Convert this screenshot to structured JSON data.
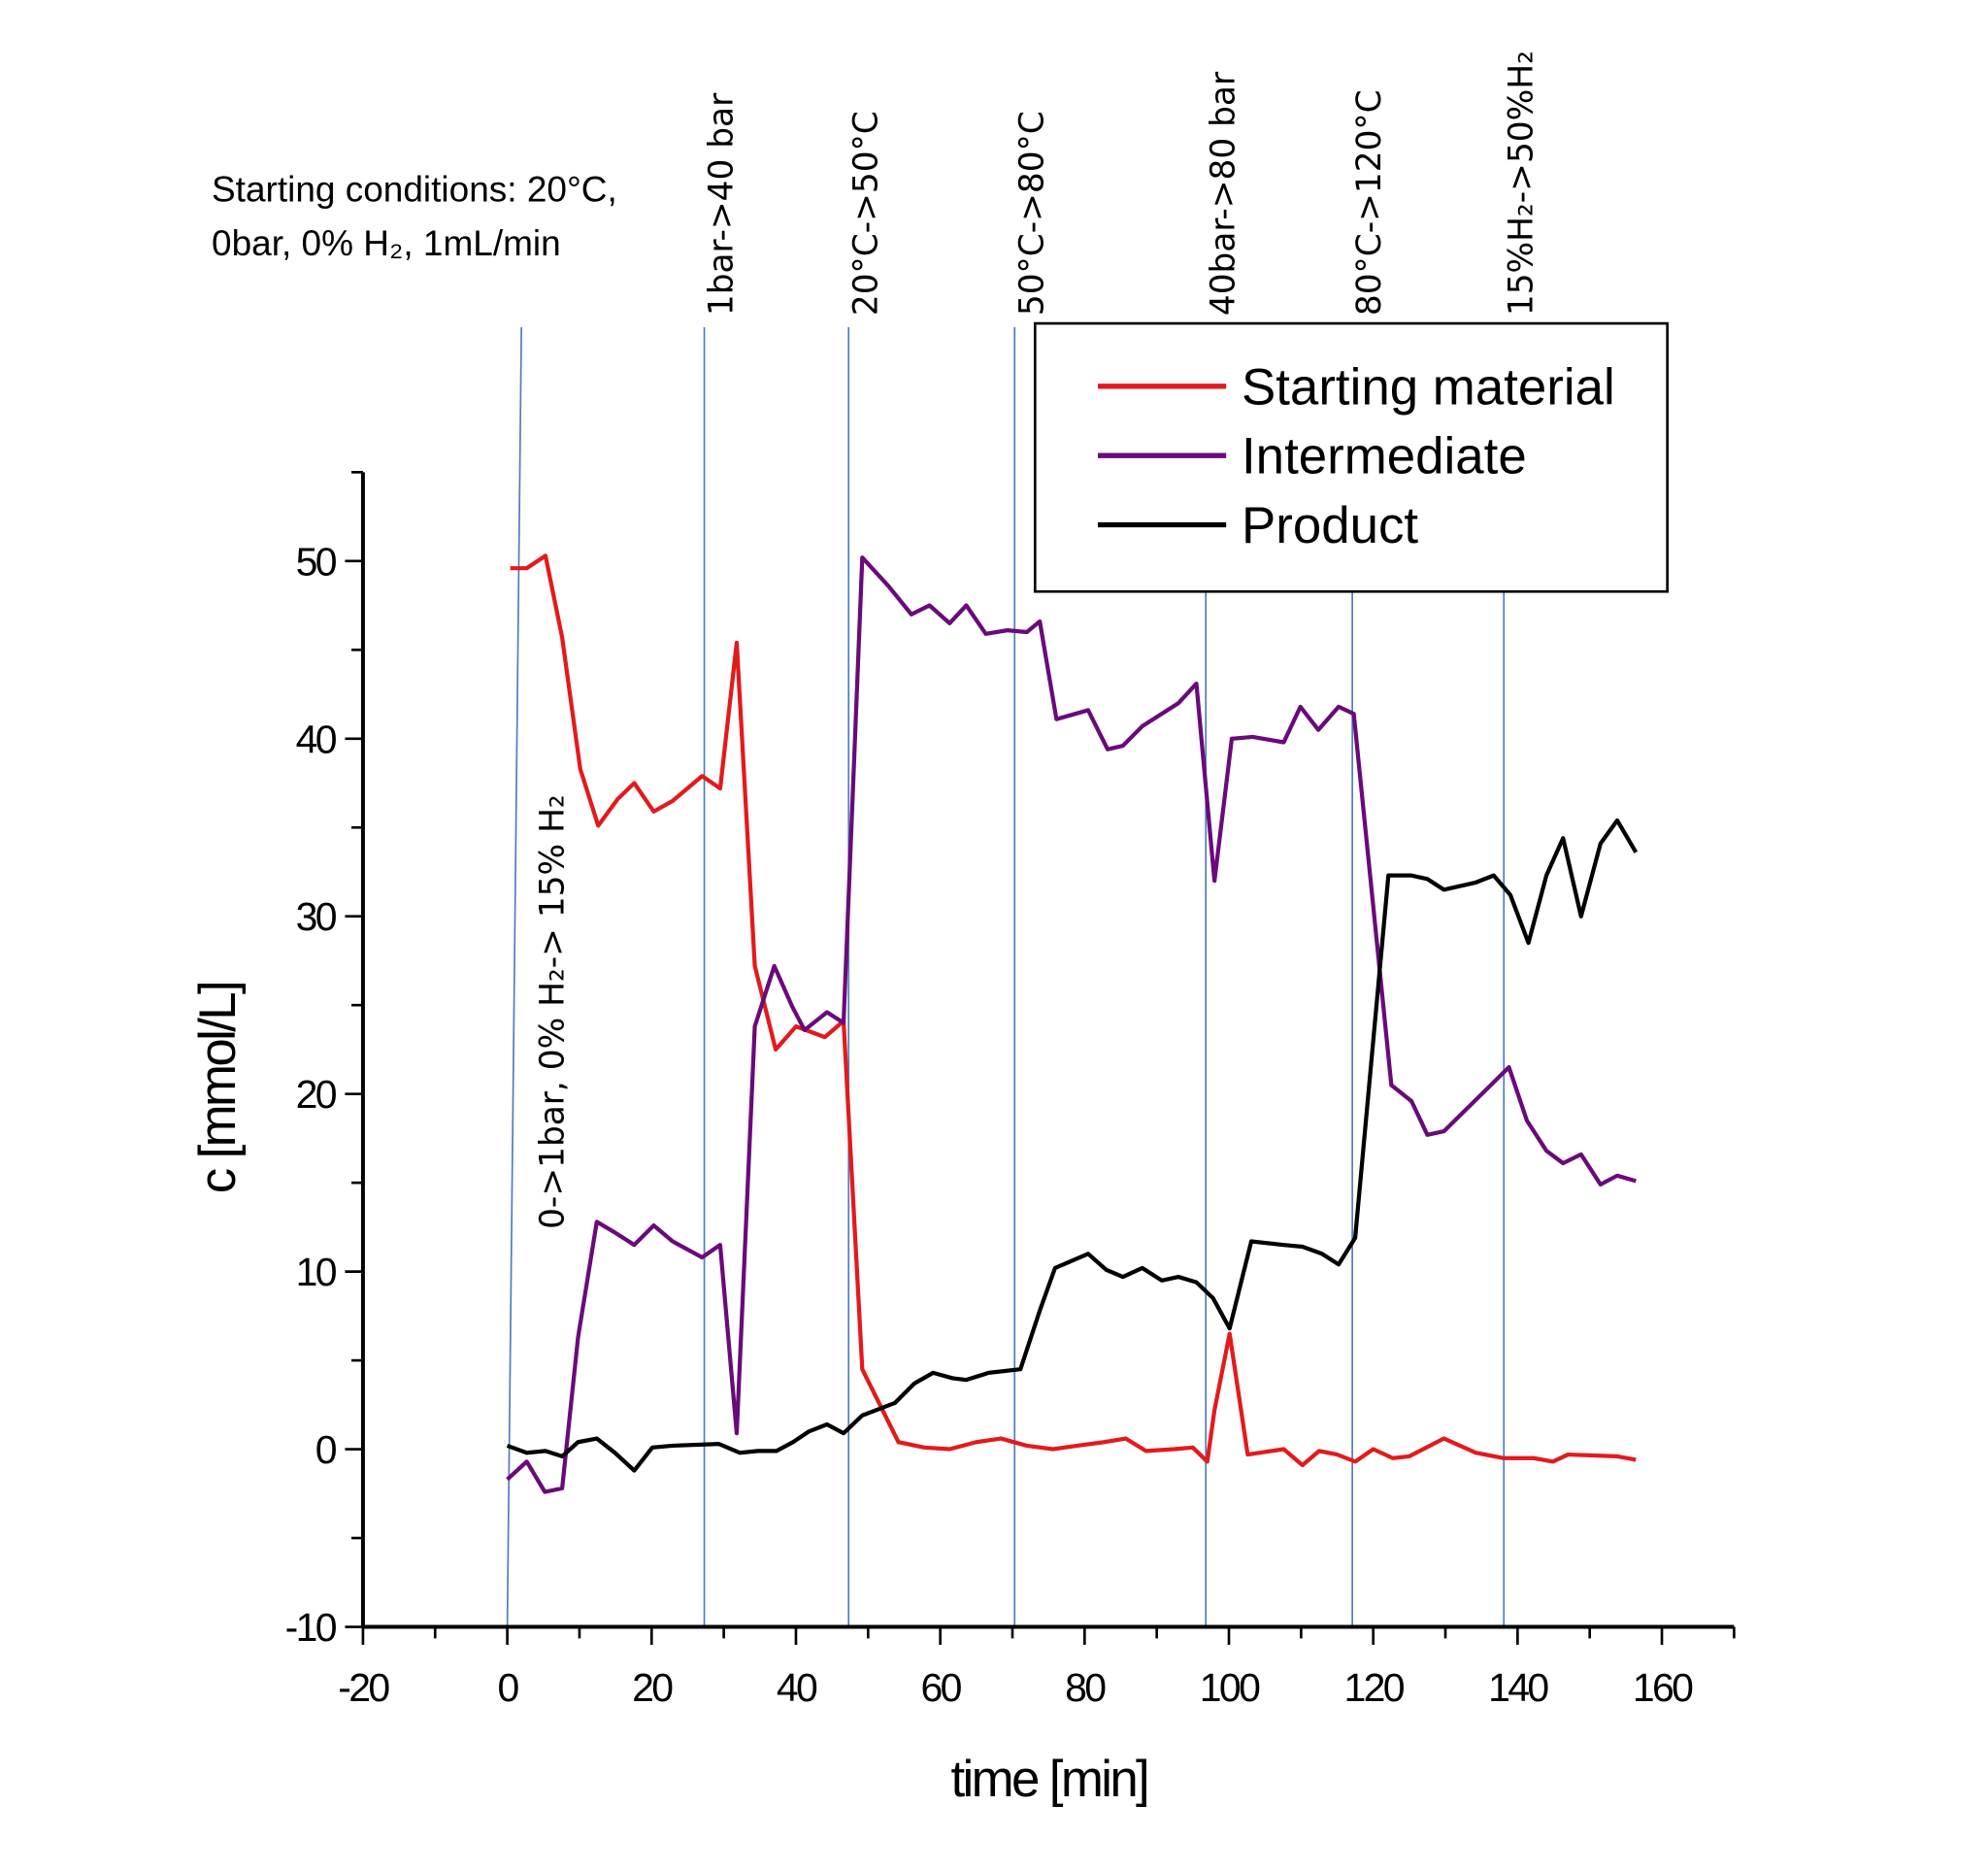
{
  "chart_data": {
    "type": "line",
    "title": "",
    "xlabel": "time [min]",
    "ylabel": "c [mmol/L]",
    "xlim": [
      -20,
      170
    ],
    "ylim": [
      -10,
      55
    ],
    "xticks": [
      -20,
      0,
      20,
      40,
      60,
      80,
      100,
      120,
      140,
      160
    ],
    "yticks": [
      -10,
      0,
      10,
      20,
      30,
      40,
      50
    ],
    "grid": false,
    "legend_position": "top-right",
    "series": [
      {
        "name": "Starting material",
        "color": "#e31a1c",
        "x": [
          0.4,
          2.7,
          5.3,
          7.6,
          10.1,
          12.6,
          15.3,
          17.6,
          20.3,
          22.9,
          27,
          29.5,
          31.8,
          34.3,
          37.2,
          40,
          44,
          46.6,
          49.2,
          54.2,
          57.8,
          61.3,
          65,
          68.4,
          72,
          75.6,
          79,
          82.7,
          85.7,
          88.5,
          92.4,
          95,
          97,
          98,
          100.1,
          102.6,
          107.6,
          110.2,
          112.5,
          115,
          117.5,
          120,
          122.7,
          125,
          129.8,
          134.2,
          138.1,
          142.2,
          144.9,
          147,
          153.8,
          156.4
        ],
        "y": [
          49.6,
          49.6,
          50.3,
          45.7,
          38.3,
          35.1,
          36.6,
          37.5,
          35.9,
          36.5,
          37.9,
          37.2,
          45.4,
          27.2,
          22.5,
          23.8,
          23.2,
          24.1,
          4.5,
          0.4,
          0.1,
          0,
          0.4,
          0.6,
          0.2,
          0,
          0.2,
          0.4,
          0.6,
          -0.1,
          0,
          0.1,
          -0.7,
          2.2,
          6.5,
          -0.3,
          0,
          -0.9,
          -0.1,
          -0.3,
          -0.7,
          0,
          -0.5,
          -0.4,
          0.6,
          -0.2,
          -0.5,
          -0.5,
          -0.7,
          -0.3,
          -0.4,
          -0.6
        ]
      },
      {
        "name": "Intermediate",
        "color": "#6a0a7a",
        "x": [
          0,
          2.7,
          5.2,
          7.6,
          9.8,
          12.4,
          14.9,
          17.6,
          20.3,
          22.9,
          27,
          29.5,
          31.8,
          34.3,
          37,
          39.5,
          41.2,
          44.3,
          46.6,
          49.2,
          52.8,
          56,
          58.5,
          61.3,
          63.6,
          66.3,
          69.3,
          72,
          73.8,
          76.1,
          80.5,
          83.2,
          85.3,
          88,
          93,
          95.5,
          98,
          100.4,
          103.3,
          107.6,
          109.9,
          112.4,
          115.2,
          117.3,
          122.5,
          125.3,
          127.5,
          129.8,
          138.8,
          141.3,
          144,
          146.3,
          148.8,
          151.5,
          153.8,
          156.4
        ],
        "y": [
          -1.7,
          -0.7,
          -2.4,
          -2.2,
          6.3,
          12.8,
          12.2,
          11.5,
          12.6,
          11.7,
          10.8,
          11.5,
          0.9,
          23.8,
          27.2,
          24.9,
          23.6,
          24.6,
          24,
          50.2,
          48.6,
          47,
          47.5,
          46.5,
          47.5,
          45.9,
          46.1,
          46,
          46.6,
          41.1,
          41.6,
          39.4,
          39.6,
          40.7,
          42,
          43.1,
          32,
          40,
          40.1,
          39.8,
          41.8,
          40.5,
          41.8,
          41.4,
          20.5,
          19.6,
          17.7,
          17.9,
          21.5,
          18.5,
          16.8,
          16.1,
          16.6,
          14.9,
          15.4,
          15.1
        ]
      },
      {
        "name": "Product",
        "color": "#000000",
        "x": [
          0,
          2.7,
          5.3,
          7.6,
          9.8,
          12.4,
          14.9,
          17.6,
          20.1,
          22.9,
          29.3,
          32.2,
          34.7,
          37.3,
          39.6,
          41.8,
          44.3,
          46.6,
          49.2,
          53.7,
          56.4,
          59,
          61.7,
          63.6,
          66.7,
          71.1,
          73.8,
          75.9,
          80.5,
          83,
          85.3,
          88,
          90.7,
          93,
          95.5,
          97.8,
          100.1,
          103.1,
          107.6,
          110.2,
          112.9,
          115.2,
          117.5,
          122.1,
          125.3,
          127.5,
          129.8,
          134.2,
          136.7,
          139,
          141.5,
          144,
          146.3,
          148.8,
          151.5,
          153.8,
          156.4
        ],
        "y": [
          0.2,
          -0.2,
          -0.1,
          -0.4,
          0.4,
          0.6,
          -0.2,
          -1.2,
          0.1,
          0.2,
          0.3,
          -0.2,
          -0.1,
          -0.1,
          0.4,
          1,
          1.4,
          0.9,
          1.9,
          2.6,
          3.7,
          4.3,
          4,
          3.9,
          4.3,
          4.5,
          7.8,
          10.2,
          11,
          10.1,
          9.7,
          10.2,
          9.5,
          9.7,
          9.4,
          8.5,
          6.8,
          11.7,
          11.5,
          11.4,
          11,
          10.4,
          11.9,
          32.3,
          32.3,
          32.1,
          31.5,
          31.9,
          32.3,
          31.2,
          28.5,
          32.3,
          34.4,
          30,
          34.1,
          35.4,
          33.6
        ]
      }
    ],
    "event_lines": {
      "color": "#4f7fc0",
      "x": [
        0,
        27.3,
        47.3,
        70.3,
        96.8,
        117.1,
        138.1
      ]
    },
    "annotations": [
      "0->1bar, 0% H₂-> 15% H₂",
      "1bar->40 bar",
      "20°C->50°C",
      "50°C->80°C",
      "40bar->80 bar",
      "80°C->120°C",
      "15%H₂->50%H₂"
    ],
    "starting_conditions": [
      "Starting conditions: 20°C,",
      "0bar, 0% H₂, 1mL/min"
    ]
  }
}
